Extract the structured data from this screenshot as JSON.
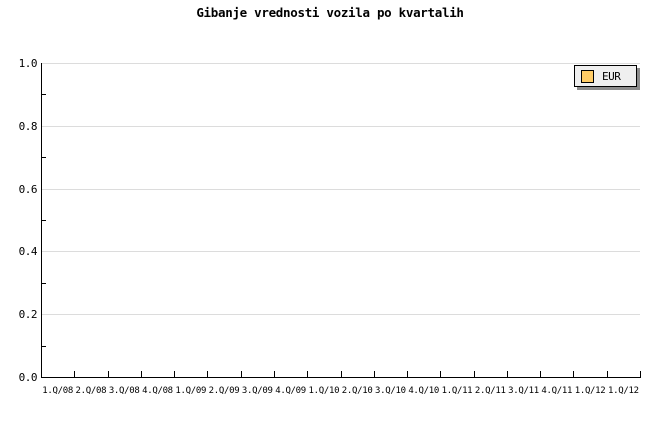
{
  "title": "Gibanje vrednosti vozila po kvartalih",
  "legend": {
    "items": [
      {
        "label": "EUR",
        "swatch_color": "#FFCC66"
      }
    ]
  },
  "axes": {
    "y": {
      "tick_labels": [
        "1.0",
        "0.8",
        "0.6",
        "0.4",
        "0.2",
        "0.0"
      ]
    },
    "x": {
      "tick_labels": [
        "1.Q/08",
        "2.Q/08",
        "3.Q/08",
        "4.Q/08",
        "1.Q/09",
        "2.Q/09",
        "3.Q/09",
        "4.Q/09",
        "1.Q/10",
        "2.Q/10",
        "3.Q/10",
        "4.Q/10",
        "1.Q/11",
        "2.Q/11",
        "3.Q/11",
        "4.Q/11",
        "1.Q/12",
        "1.Q/12"
      ]
    }
  },
  "colors": {
    "background": "#FFFFFF",
    "axis": "#000000",
    "grid": "#DCDCDC",
    "text": "#000000",
    "legend_bg": "#EFEFEF",
    "legend_border": "#000000",
    "legend_shadow": "#8C8C8C",
    "swatch_fill": "#FFCC66",
    "swatch_border": "#000000"
  },
  "chart_data": {
    "type": "line",
    "title": "Gibanje vrednosti vozila po kvartalih",
    "categories": [
      "1.Q/08",
      "2.Q/08",
      "3.Q/08",
      "4.Q/08",
      "1.Q/09",
      "2.Q/09",
      "3.Q/09",
      "4.Q/09",
      "1.Q/10",
      "2.Q/10",
      "3.Q/10",
      "4.Q/10",
      "1.Q/11",
      "2.Q/11",
      "3.Q/11",
      "4.Q/11",
      "1.Q/12",
      "1.Q/12"
    ],
    "series": [
      {
        "name": "EUR",
        "values": []
      }
    ],
    "xlabel": "",
    "ylabel": "",
    "ylim": [
      0.0,
      1.0
    ],
    "y_major_ticks": [
      0.0,
      0.2,
      0.4,
      0.6,
      0.8,
      1.0
    ],
    "y_minor_step": 0.1,
    "grid": true,
    "legend_position": "top-right"
  }
}
